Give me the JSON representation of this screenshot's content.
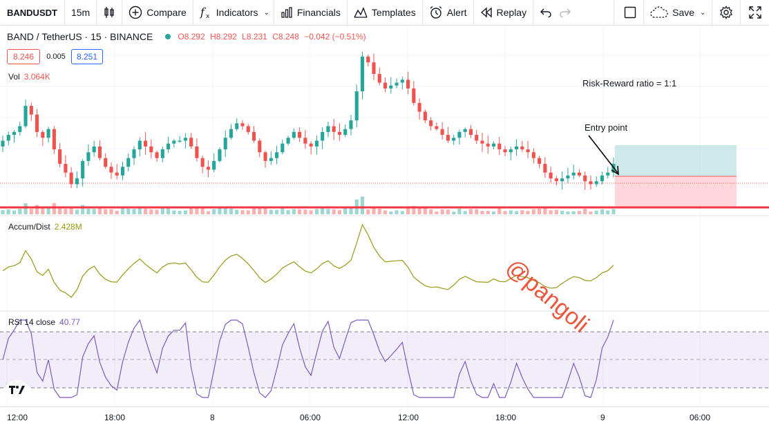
{
  "toolbar": {
    "symbol": "BANDUSDT",
    "interval": "15m",
    "compare": "Compare",
    "indicators": "Indicators",
    "financials": "Financials",
    "templates": "Templates",
    "alert": "Alert",
    "replay": "Replay",
    "save": "Save"
  },
  "legend": {
    "title": "BAND / TetherUS · 15 · BINANCE",
    "o": "O8.292",
    "h": "H8.292",
    "l": "L8.231",
    "c": "C8.248",
    "change": "−0.042 (−0.51%)",
    "bid": "8.246",
    "spread": "0.005",
    "ask": "8.251"
  },
  "volume": {
    "label": "Vol",
    "value": "3.064K"
  },
  "accum": {
    "label": "Accum/Dist",
    "value": "2.428M"
  },
  "rsi": {
    "label": "RSI 14 close",
    "value": "40.77"
  },
  "annotations": {
    "risk_reward": "Risk-Reward ratio = 1:1",
    "entry": "Entry point",
    "watermark": "@pangoli"
  },
  "xaxis": [
    "12:00",
    "18:00",
    "8",
    "06:00",
    "12:00",
    "18:00",
    "9",
    "06:00"
  ],
  "colors": {
    "up": "#26a69a",
    "down": "#ef5350",
    "ad": "#999915",
    "rsi": "#7e57c2",
    "watermark": "#e8442a"
  },
  "chart_data": {
    "type": "candlestick",
    "symbol": "BANDUSDT",
    "interval": "15m",
    "close_series": [
      8.33,
      8.35,
      8.36,
      8.38,
      8.45,
      8.42,
      8.36,
      8.34,
      8.37,
      8.3,
      8.25,
      8.22,
      8.18,
      8.2,
      8.26,
      8.29,
      8.31,
      8.27,
      8.24,
      8.22,
      8.21,
      8.24,
      8.27,
      8.3,
      8.33,
      8.31,
      8.29,
      8.27,
      8.3,
      8.32,
      8.33,
      8.33,
      8.34,
      8.31,
      8.27,
      8.24,
      8.23,
      8.26,
      8.3,
      8.34,
      8.37,
      8.39,
      8.38,
      8.36,
      8.33,
      8.29,
      8.26,
      8.27,
      8.29,
      8.32,
      8.34,
      8.36,
      8.34,
      8.32,
      8.31,
      8.33,
      8.36,
      8.38,
      8.36,
      8.35,
      8.37,
      8.4,
      8.5,
      8.62,
      8.6,
      8.56,
      8.53,
      8.51,
      8.52,
      8.53,
      8.54,
      8.51,
      8.46,
      8.43,
      8.4,
      8.38,
      8.37,
      8.35,
      8.33,
      8.34,
      8.36,
      8.37,
      8.35,
      8.33,
      8.32,
      8.31,
      8.32,
      8.3,
      8.29,
      8.3,
      8.31,
      8.3,
      8.29,
      8.27,
      8.25,
      8.22,
      8.2,
      8.19,
      8.2,
      8.21,
      8.22,
      8.21,
      8.19,
      8.18,
      8.19,
      8.21,
      8.22,
      8.25
    ],
    "entry_price": 8.248,
    "position": {
      "entry": 8.248,
      "target_zone": "green",
      "stop_zone": "red",
      "ratio": "1:1"
    },
    "indicators": [
      "Volume",
      "Accumulation/Distribution",
      "RSI 14"
    ],
    "rsi_bands": [
      30,
      50,
      70
    ]
  }
}
